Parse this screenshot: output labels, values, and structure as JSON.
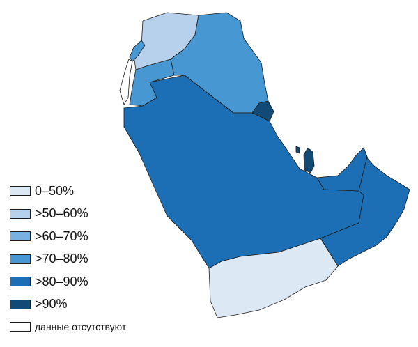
{
  "colors": {
    "0-50": "#dde8f5",
    "50-60": "#b7d1ec",
    "60-70": "#79b2e0",
    "70-80": "#4697d2",
    "80-90": "#1c6fb4",
    "90+": "#114a75",
    "no-data": "#ffffff"
  },
  "legend": {
    "items": [
      {
        "key": "0-50",
        "label": "0–50%"
      },
      {
        "key": "50-60",
        "label": ">50–60%"
      },
      {
        "key": "60-70",
        "label": ">60–70%"
      },
      {
        "key": "70-80",
        "label": ">70–80%"
      },
      {
        "key": "80-90",
        "label": ">80–90%"
      },
      {
        "key": "90+",
        "label": ">90%"
      },
      {
        "key": "no-data",
        "label": "данные отсутствуют"
      }
    ]
  },
  "regions": [
    {
      "id": "syria",
      "class": "50-60"
    },
    {
      "id": "lebanon",
      "class": "70-80"
    },
    {
      "id": "israel-palestine",
      "class": "no-data"
    },
    {
      "id": "jordan",
      "class": "70-80"
    },
    {
      "id": "iraq",
      "class": "70-80"
    },
    {
      "id": "kuwait",
      "class": "90+"
    },
    {
      "id": "saudi-arabia",
      "class": "80-90"
    },
    {
      "id": "bahrain",
      "class": "90+"
    },
    {
      "id": "qatar",
      "class": "90+"
    },
    {
      "id": "uae",
      "class": "80-90"
    },
    {
      "id": "oman",
      "class": "80-90"
    },
    {
      "id": "yemen",
      "class": "0-50"
    }
  ]
}
